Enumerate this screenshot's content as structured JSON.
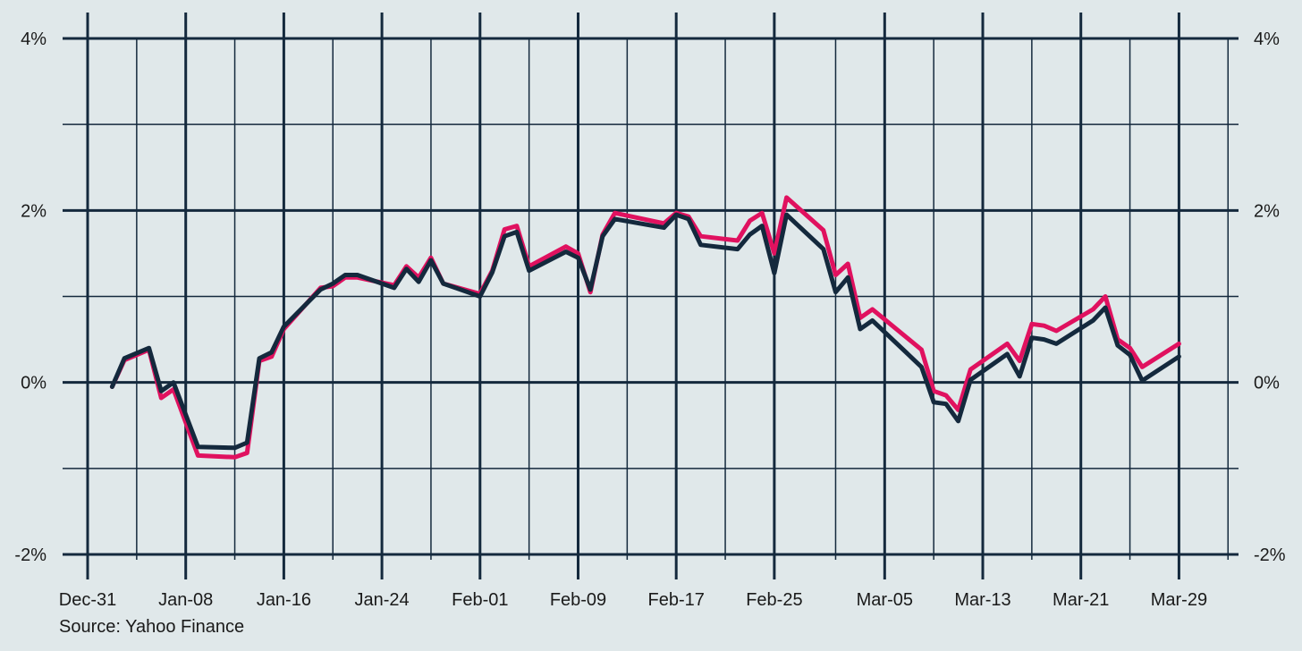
{
  "chart_data": {
    "type": "line",
    "title": "",
    "xlabel": "",
    "ylabel": "",
    "source": "Source: Yahoo Finance",
    "x_tick_labels": [
      "Dec-31",
      "Jan-08",
      "Jan-16",
      "Jan-24",
      "Feb-01",
      "Feb-09",
      "Feb-17",
      "Feb-25",
      "Mar-05",
      "Mar-13",
      "Mar-21",
      "Mar-29"
    ],
    "x_tick_dates": [
      "2023-12-31",
      "2024-01-08",
      "2024-01-16",
      "2024-01-24",
      "2024-02-01",
      "2024-02-09",
      "2024-02-17",
      "2024-02-25",
      "2024-03-05",
      "2024-03-13",
      "2024-03-21",
      "2024-03-29"
    ],
    "x_minor_tick_dates": [
      "2024-01-04",
      "2024-01-12",
      "2024-01-20",
      "2024-01-28",
      "2024-02-05",
      "2024-02-13",
      "2024-02-21",
      "2024-03-01",
      "2024-03-09",
      "2024-03-17",
      "2024-03-25",
      "2024-04-02"
    ],
    "xlim": [
      "2023-12-31",
      "2024-04-04"
    ],
    "ylim": [
      -2,
      4
    ],
    "y_ticks": [
      -2,
      0,
      2,
      4
    ],
    "y_tick_labels": [
      "-2%",
      "0%",
      "2%",
      "4%"
    ],
    "y_minor_ticks": [
      -1,
      1,
      3
    ],
    "grid": true,
    "series": [
      {
        "color": "#e0115f",
        "points": [
          [
            "2024-01-02",
            -0.05
          ],
          [
            "2024-01-03",
            0.26
          ],
          [
            "2024-01-05",
            0.38
          ],
          [
            "2024-01-06",
            -0.18
          ],
          [
            "2024-01-07",
            -0.08
          ],
          [
            "2024-01-09",
            -0.85
          ],
          [
            "2024-01-12",
            -0.87
          ],
          [
            "2024-01-13",
            -0.82
          ],
          [
            "2024-01-14",
            0.25
          ],
          [
            "2024-01-15",
            0.3
          ],
          [
            "2024-01-16",
            0.62
          ],
          [
            "2024-01-19",
            1.1
          ],
          [
            "2024-01-20",
            1.12
          ],
          [
            "2024-01-21",
            1.22
          ],
          [
            "2024-01-22",
            1.22
          ],
          [
            "2024-01-25",
            1.13
          ],
          [
            "2024-01-26",
            1.35
          ],
          [
            "2024-01-27",
            1.22
          ],
          [
            "2024-01-28",
            1.45
          ],
          [
            "2024-01-29",
            1.15
          ],
          [
            "2024-02-01",
            1.03
          ],
          [
            "2024-02-02",
            1.3
          ],
          [
            "2024-02-03",
            1.78
          ],
          [
            "2024-02-04",
            1.82
          ],
          [
            "2024-02-05",
            1.35
          ],
          [
            "2024-02-08",
            1.58
          ],
          [
            "2024-02-09",
            1.5
          ],
          [
            "2024-02-10",
            1.05
          ],
          [
            "2024-02-11",
            1.72
          ],
          [
            "2024-02-12",
            1.97
          ],
          [
            "2024-02-16",
            1.85
          ],
          [
            "2024-02-17",
            1.97
          ],
          [
            "2024-02-18",
            1.93
          ],
          [
            "2024-02-19",
            1.7
          ],
          [
            "2024-02-22",
            1.65
          ],
          [
            "2024-02-23",
            1.88
          ],
          [
            "2024-02-24",
            1.97
          ],
          [
            "2024-02-25",
            1.5
          ],
          [
            "2024-02-26",
            2.15
          ],
          [
            "2024-02-29",
            1.77
          ],
          [
            "2024-03-01",
            1.25
          ],
          [
            "2024-03-02",
            1.38
          ],
          [
            "2024-03-03",
            0.75
          ],
          [
            "2024-03-04",
            0.85
          ],
          [
            "2024-03-08",
            0.38
          ],
          [
            "2024-03-09",
            -0.1
          ],
          [
            "2024-03-10",
            -0.15
          ],
          [
            "2024-03-11",
            -0.32
          ],
          [
            "2024-03-12",
            0.15
          ],
          [
            "2024-03-15",
            0.45
          ],
          [
            "2024-03-16",
            0.25
          ],
          [
            "2024-03-17",
            0.68
          ],
          [
            "2024-03-18",
            0.66
          ],
          [
            "2024-03-19",
            0.6
          ],
          [
            "2024-03-22",
            0.85
          ],
          [
            "2024-03-23",
            1.0
          ],
          [
            "2024-03-24",
            0.5
          ],
          [
            "2024-03-25",
            0.4
          ],
          [
            "2024-03-26",
            0.18
          ],
          [
            "2024-03-29",
            0.45
          ]
        ]
      },
      {
        "color": "#14293d",
        "points": [
          [
            "2024-01-02",
            -0.05
          ],
          [
            "2024-01-03",
            0.28
          ],
          [
            "2024-01-05",
            0.4
          ],
          [
            "2024-01-06",
            -0.1
          ],
          [
            "2024-01-07",
            0.0
          ],
          [
            "2024-01-09",
            -0.75
          ],
          [
            "2024-01-12",
            -0.76
          ],
          [
            "2024-01-13",
            -0.7
          ],
          [
            "2024-01-14",
            0.28
          ],
          [
            "2024-01-15",
            0.35
          ],
          [
            "2024-01-16",
            0.65
          ],
          [
            "2024-01-19",
            1.08
          ],
          [
            "2024-01-20",
            1.15
          ],
          [
            "2024-01-21",
            1.25
          ],
          [
            "2024-01-22",
            1.25
          ],
          [
            "2024-01-25",
            1.1
          ],
          [
            "2024-01-26",
            1.32
          ],
          [
            "2024-01-27",
            1.17
          ],
          [
            "2024-01-28",
            1.42
          ],
          [
            "2024-01-29",
            1.15
          ],
          [
            "2024-02-01",
            1.0
          ],
          [
            "2024-02-02",
            1.28
          ],
          [
            "2024-02-03",
            1.7
          ],
          [
            "2024-02-04",
            1.75
          ],
          [
            "2024-02-05",
            1.3
          ],
          [
            "2024-02-08",
            1.52
          ],
          [
            "2024-02-09",
            1.45
          ],
          [
            "2024-02-10",
            1.08
          ],
          [
            "2024-02-11",
            1.7
          ],
          [
            "2024-02-12",
            1.9
          ],
          [
            "2024-02-16",
            1.8
          ],
          [
            "2024-02-17",
            1.95
          ],
          [
            "2024-02-18",
            1.9
          ],
          [
            "2024-02-19",
            1.6
          ],
          [
            "2024-02-22",
            1.55
          ],
          [
            "2024-02-23",
            1.72
          ],
          [
            "2024-02-24",
            1.82
          ],
          [
            "2024-02-25",
            1.27
          ],
          [
            "2024-02-26",
            1.95
          ],
          [
            "2024-02-29",
            1.55
          ],
          [
            "2024-03-01",
            1.05
          ],
          [
            "2024-03-02",
            1.22
          ],
          [
            "2024-03-03",
            0.62
          ],
          [
            "2024-03-04",
            0.72
          ],
          [
            "2024-03-08",
            0.18
          ],
          [
            "2024-03-09",
            -0.23
          ],
          [
            "2024-03-10",
            -0.25
          ],
          [
            "2024-03-11",
            -0.45
          ],
          [
            "2024-03-12",
            0.03
          ],
          [
            "2024-03-15",
            0.33
          ],
          [
            "2024-03-16",
            0.07
          ],
          [
            "2024-03-17",
            0.52
          ],
          [
            "2024-03-18",
            0.5
          ],
          [
            "2024-03-19",
            0.45
          ],
          [
            "2024-03-22",
            0.72
          ],
          [
            "2024-03-23",
            0.87
          ],
          [
            "2024-03-24",
            0.43
          ],
          [
            "2024-03-25",
            0.32
          ],
          [
            "2024-03-26",
            0.02
          ],
          [
            "2024-03-29",
            0.3
          ]
        ]
      }
    ]
  }
}
